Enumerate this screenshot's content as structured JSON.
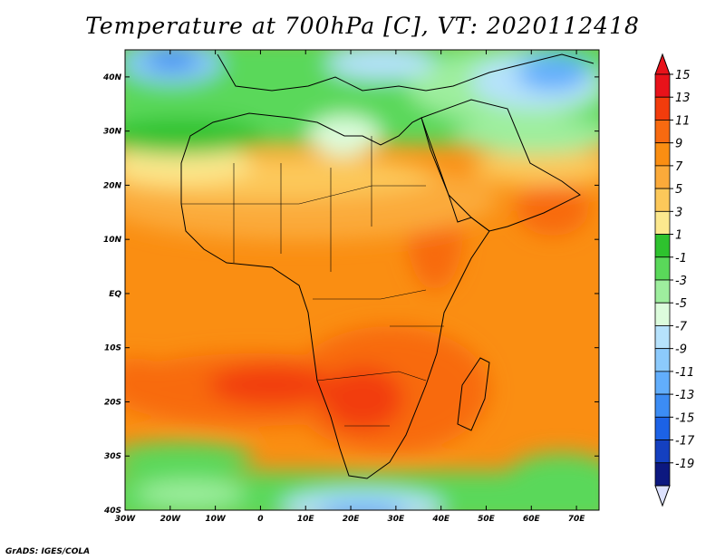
{
  "title": "Temperature at 700hPa [C], VT: 2020112418",
  "credit": "GrADS: IGES/COLA",
  "map": {
    "lon_range": [
      -30,
      75
    ],
    "lat_range": [
      -40,
      45
    ],
    "lat_ticks": [
      {
        "value": 40,
        "label": "40N"
      },
      {
        "value": 30,
        "label": "30N"
      },
      {
        "value": 20,
        "label": "20N"
      },
      {
        "value": 10,
        "label": "10N"
      },
      {
        "value": 0,
        "label": "EQ"
      },
      {
        "value": -10,
        "label": "10S"
      },
      {
        "value": -20,
        "label": "20S"
      },
      {
        "value": -30,
        "label": "30S"
      },
      {
        "value": -40,
        "label": "40S"
      }
    ],
    "lon_ticks": [
      {
        "value": -30,
        "label": "30W"
      },
      {
        "value": -20,
        "label": "20W"
      },
      {
        "value": -10,
        "label": "10W"
      },
      {
        "value": 0,
        "label": "0"
      },
      {
        "value": 10,
        "label": "10E"
      },
      {
        "value": 20,
        "label": "20E"
      },
      {
        "value": 30,
        "label": "30E"
      },
      {
        "value": 40,
        "label": "40E"
      },
      {
        "value": 50,
        "label": "50E"
      },
      {
        "value": 60,
        "label": "60E"
      },
      {
        "value": 70,
        "label": "70E"
      }
    ]
  },
  "colorbar": {
    "levels": [
      "15",
      "13",
      "11",
      "9",
      "7",
      "5",
      "3",
      "1",
      "-1",
      "-3",
      "-5",
      "-7",
      "-9",
      "-11",
      "-13",
      "-15",
      "-17",
      "-19"
    ],
    "colors": [
      "#e8121a",
      "#f23c0c",
      "#f86a10",
      "#fa8e12",
      "#fbaa3a",
      "#fcc85a",
      "#fce88e",
      "#2ec22e",
      "#5ad85a",
      "#9eee9e",
      "#dcfcdc",
      "#b6e2fc",
      "#8ccafc",
      "#62aefc",
      "#3c8cf4",
      "#1c62e6",
      "#1440c0",
      "#0c1880"
    ],
    "top_color": "#e8121a",
    "bottom_color": "#dde2fe"
  }
}
